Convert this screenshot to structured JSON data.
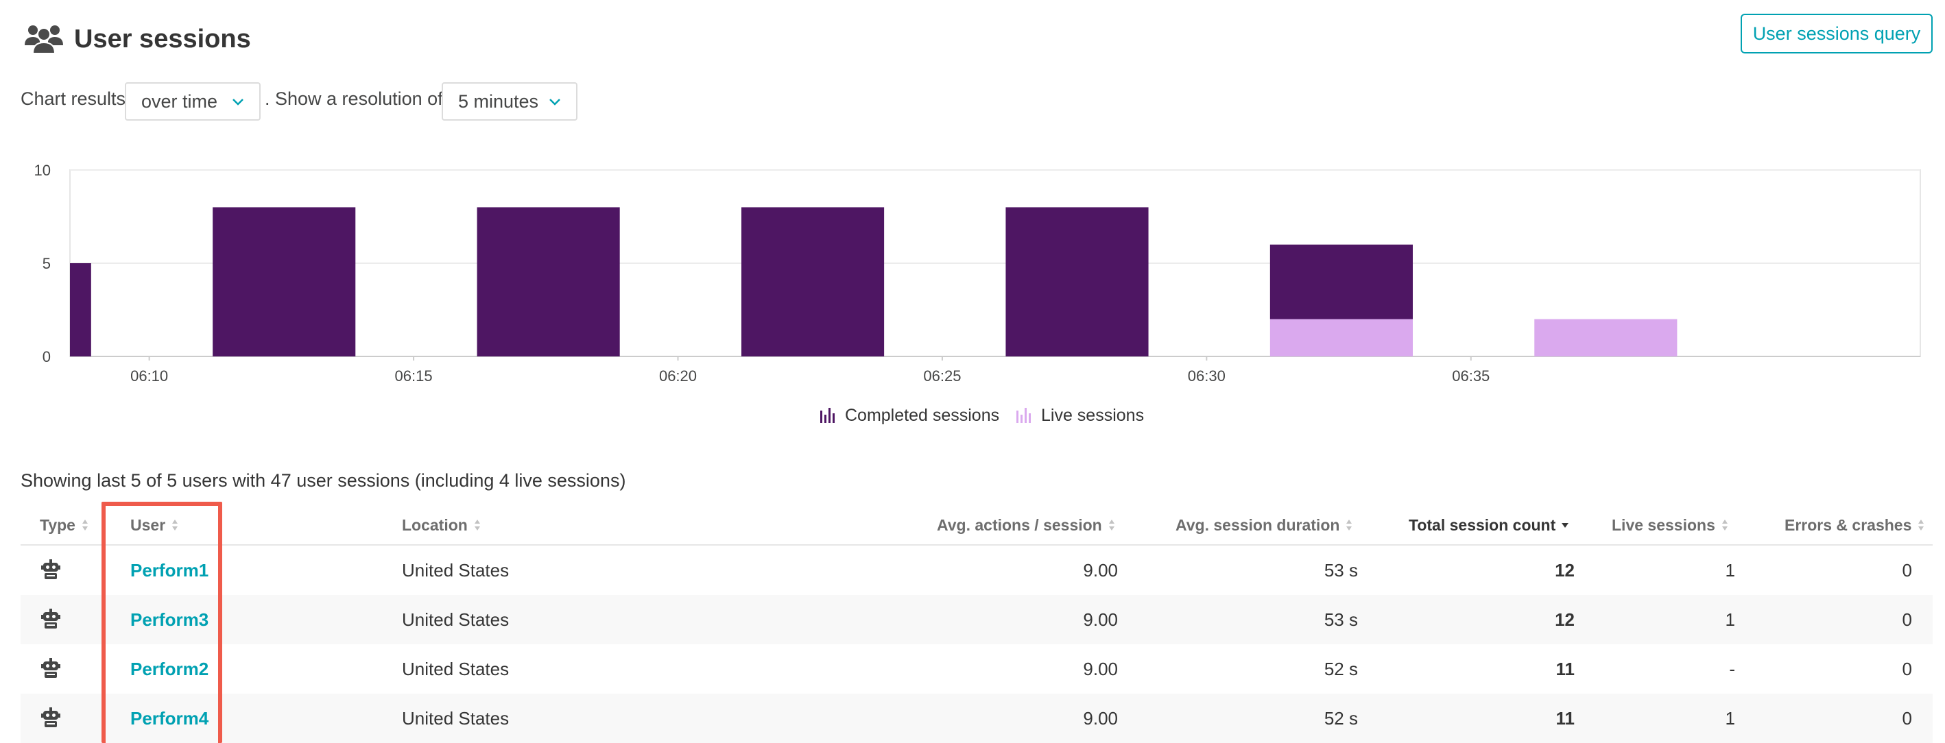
{
  "header": {
    "icon": "users-icon",
    "title": "User sessions",
    "query_button": "User sessions query"
  },
  "controls": {
    "chart_results_label": "Chart results",
    "chart_mode_value": "over time",
    "resolution_label": ". Show a resolution of",
    "resolution_value": "5 minutes"
  },
  "colors": {
    "completed": "#4e1663",
    "live": "#daa9ee",
    "accent": "#00a1b2",
    "highlight": "#ef5b4b"
  },
  "chart_data": {
    "type": "bar",
    "stacked": true,
    "x_ticks": [
      "06:10",
      "06:15",
      "06:20",
      "06:25",
      "06:30",
      "06:35"
    ],
    "y_ticks": [
      "0",
      "5",
      "10"
    ],
    "ylim": [
      0,
      10
    ],
    "xlim": [
      "06:08:30",
      "06:43:30"
    ],
    "bar_width_minutes": 2.7,
    "grid": true,
    "legend_position": "bottom-center",
    "bars": [
      {
        "start": "06:08:30",
        "end": "06:08:54",
        "completed": 5,
        "live": 0
      },
      {
        "start": "06:11:12",
        "end": "06:13:54",
        "completed": 8,
        "live": 0
      },
      {
        "start": "06:16:12",
        "end": "06:18:54",
        "completed": 8,
        "live": 0
      },
      {
        "start": "06:21:12",
        "end": "06:23:54",
        "completed": 8,
        "live": 0
      },
      {
        "start": "06:26:12",
        "end": "06:28:54",
        "completed": 8,
        "live": 0
      },
      {
        "start": "06:31:12",
        "end": "06:33:54",
        "completed": 4,
        "live": 2
      },
      {
        "start": "06:36:12",
        "end": "06:38:54",
        "completed": 0,
        "live": 2
      }
    ],
    "series": [
      {
        "name": "Completed sessions",
        "color": "#4e1663"
      },
      {
        "name": "Live sessions",
        "color": "#daa9ee"
      }
    ]
  },
  "summary": "Showing last 5 of 5 users with 47 user sessions (including 4 live sessions)",
  "table": {
    "columns": [
      "Type",
      "User",
      "Location",
      "Avg. actions / session",
      "Avg. session duration",
      "Total session count",
      "Live sessions",
      "Errors & crashes"
    ],
    "sorted_column": "Total session count",
    "sort_direction": "descending",
    "rows": [
      {
        "type_icon": "robot-icon",
        "user": "Perform1",
        "location": "United States",
        "avg_actions": "9.00",
        "avg_duration": "53 s",
        "total": "12",
        "live": "1",
        "errors": "0"
      },
      {
        "type_icon": "robot-icon",
        "user": "Perform3",
        "location": "United States",
        "avg_actions": "9.00",
        "avg_duration": "53 s",
        "total": "12",
        "live": "1",
        "errors": "0"
      },
      {
        "type_icon": "robot-icon",
        "user": "Perform2",
        "location": "United States",
        "avg_actions": "9.00",
        "avg_duration": "52 s",
        "total": "11",
        "live": "-",
        "errors": "0"
      },
      {
        "type_icon": "robot-icon",
        "user": "Perform4",
        "location": "United States",
        "avg_actions": "9.00",
        "avg_duration": "52 s",
        "total": "11",
        "live": "1",
        "errors": "0"
      }
    ]
  }
}
